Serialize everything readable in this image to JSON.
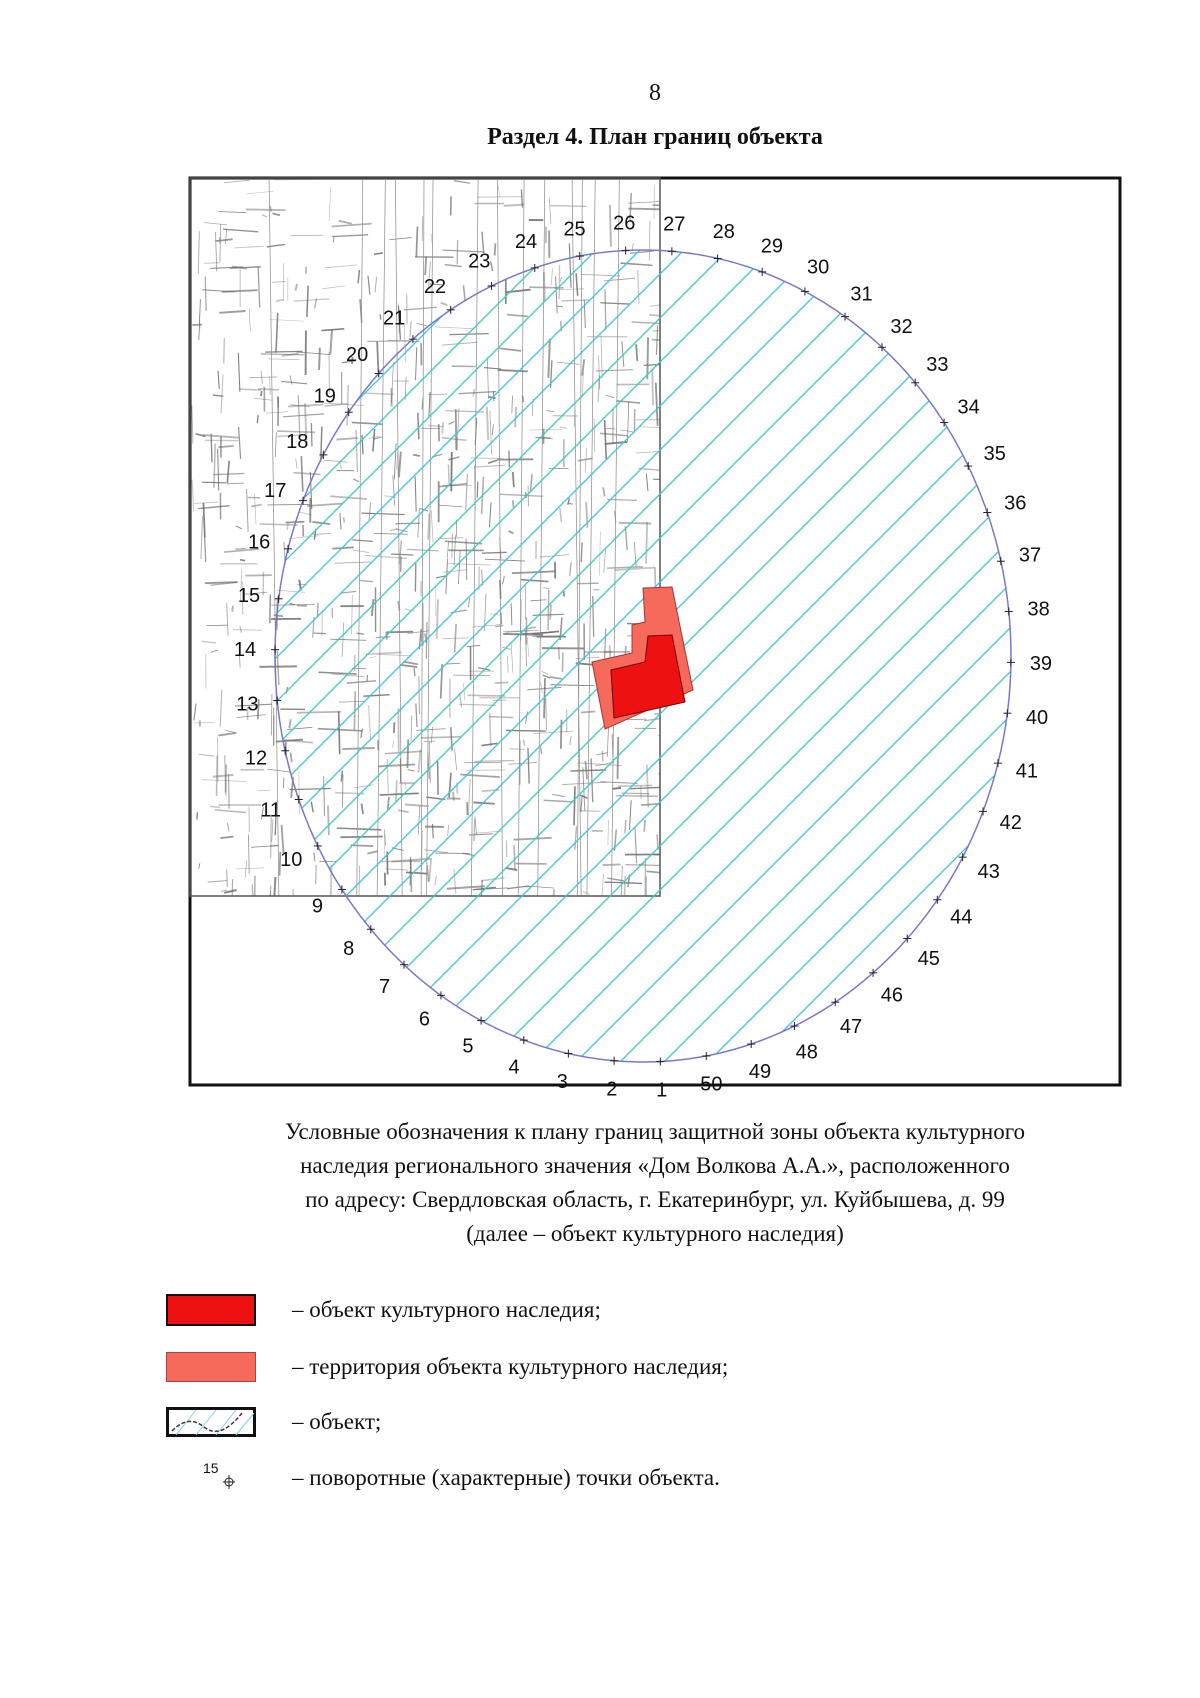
{
  "page_number": "8",
  "title": "Раздел 4. План границ объекта",
  "map": {
    "point_labels": [
      "1",
      "2",
      "3",
      "4",
      "5",
      "6",
      "7",
      "8",
      "9",
      "10",
      "11",
      "12",
      "13",
      "14",
      "15",
      "16",
      "17",
      "18",
      "19",
      "20",
      "21",
      "22",
      "23",
      "24",
      "25",
      "26",
      "27",
      "28",
      "29",
      "30",
      "31",
      "32",
      "33",
      "34",
      "35",
      "36",
      "37",
      "38",
      "39",
      "40",
      "41",
      "42",
      "43",
      "44",
      "45",
      "46",
      "47",
      "48",
      "49",
      "50"
    ],
    "colors": {
      "hatch": "#3cc4d4",
      "boundary": "#7a78c8",
      "object": "#ee1111",
      "territory": "#f56a5a",
      "basemap": "#6a6a6a"
    }
  },
  "caption": [
    "Условные обозначения к плану границ защитной зоны объекта культурного",
    "наследия регионального значения «Дом Волкова А.А.», расположенного",
    "по адресу: Свердловская область, г. Екатеринбург, ул. Куйбышева, д. 99",
    "(далее – объект культурного наследия)"
  ],
  "legend": [
    {
      "label": "– объект культурного наследия;",
      "icon": "red-filled-rectangle"
    },
    {
      "label": "– территория объекта культурного наследия;",
      "icon": "salmon-filled-rectangle"
    },
    {
      "label": "– объект;",
      "icon": "hatched-boundary-rectangle"
    },
    {
      "label": "– поворотные (характерные) точки объекта.",
      "icon": "crosshair-point",
      "sample_number": "15"
    }
  ]
}
